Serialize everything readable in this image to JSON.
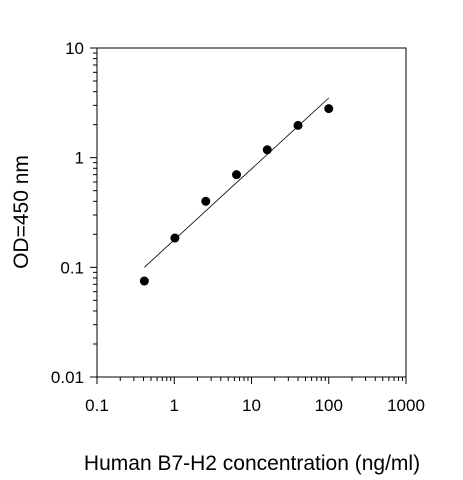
{
  "chart_data": {
    "type": "scatter",
    "title": "",
    "xlabel": "Human B7-H2 concentration (ng/ml)",
    "ylabel": "OD=450 nm",
    "xscale": "log",
    "yscale": "log",
    "xlim": [
      0.1,
      1000
    ],
    "ylim": [
      0.01,
      10
    ],
    "x_ticks": [
      0.1,
      1,
      10,
      100,
      1000
    ],
    "x_tick_labels": [
      "0.1",
      "1",
      "10",
      "100",
      "1000"
    ],
    "y_ticks": [
      0.01,
      0.1,
      1,
      10
    ],
    "y_tick_labels": [
      "0.01",
      "0.1",
      "1",
      "10"
    ],
    "grid": false,
    "legend": "none",
    "series": [
      {
        "marker": "filled-circle",
        "color": "#000000",
        "points": [
          {
            "x": 0.41,
            "y": 0.075
          },
          {
            "x": 1.02,
            "y": 0.185
          },
          {
            "x": 2.56,
            "y": 0.4
          },
          {
            "x": 6.4,
            "y": 0.7
          },
          {
            "x": 16,
            "y": 1.18
          },
          {
            "x": 40,
            "y": 1.97
          },
          {
            "x": 100,
            "y": 2.8
          }
        ]
      }
    ],
    "fit_line": {
      "color": "#000000",
      "x_start": 0.41,
      "y_start": 0.1,
      "x_end": 100,
      "y_end": 3.5
    }
  }
}
